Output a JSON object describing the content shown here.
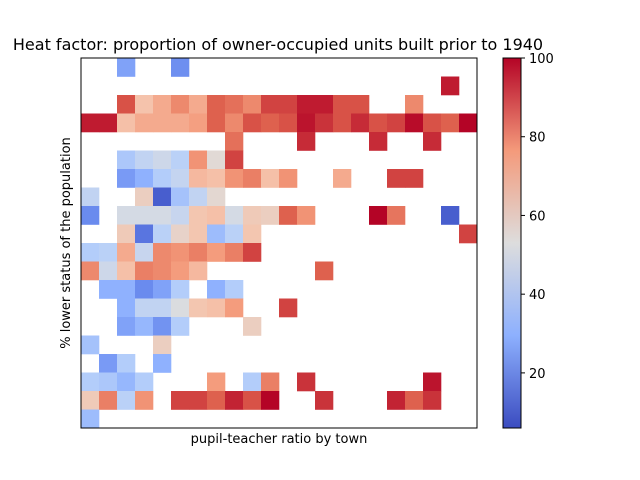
{
  "chart_data": {
    "type": "heatmap",
    "title": "Heat factor: proportion of owner-occupied units built prior to 1940",
    "xlabel": "pupil-teacher ratio by town",
    "ylabel": "% lower status of the population",
    "colormap": "coolwarm",
    "colorbar": {
      "min": 6,
      "max": 100,
      "ticks": [
        20,
        40,
        60,
        80,
        100
      ]
    },
    "grid": false,
    "rows_top_to_bottom": [
      [
        null,
        null,
        26,
        null,
        null,
        21,
        null,
        null,
        null,
        null,
        null,
        null,
        null,
        null,
        null,
        null,
        null,
        null,
        null,
        null,
        null,
        null,
        null,
        null,
        null,
        null,
        null,
        null,
        null,
        null,
        null,
        null,
        null,
        null,
        null,
        null,
        null,
        null,
        null,
        null,
        null,
        null,
        null,
        null,
        null,
        null,
        null,
        null,
        null,
        null,
        null,
        null,
        null,
        null,
        null,
        null,
        null,
        null,
        null,
        null,
        null,
        null,
        null,
        null,
        null,
        null,
        null,
        null,
        null,
        null,
        null,
        null,
        null,
        null
      ],
      [
        null,
        null,
        null,
        null,
        null,
        null,
        null,
        null,
        null,
        null,
        null,
        null,
        null,
        null,
        null,
        null,
        null,
        null,
        null,
        null,
        null,
        null,
        null,
        null,
        null,
        null,
        null,
        null,
        null,
        null,
        null,
        null,
        null,
        null,
        null,
        null,
        null,
        null,
        null,
        null,
        null,
        null,
        null,
        null,
        null,
        null,
        null,
        null,
        null,
        null,
        null,
        null,
        null,
        null,
        null,
        null,
        null,
        null,
        null,
        null,
        null,
        null,
        null,
        null,
        null,
        null,
        null,
        null,
        null,
        null,
        null,
        null,
        null,
        null
      ],
      [
        null,
        null,
        90,
        65,
        72,
        80,
        72,
        88,
        85,
        80,
        92,
        92,
        97,
        97,
        90,
        90,
        null,
        null,
        80,
        null,
        null,
        null,
        null,
        null,
        98,
        null
      ],
      [
        97,
        97,
        66,
        72,
        72,
        72,
        75,
        88,
        80,
        90,
        88,
        90,
        98,
        94,
        90,
        95,
        90,
        92,
        99,
        90,
        88,
        92,
        94,
        100
      ],
      [
        null,
        null,
        null,
        null,
        null,
        null,
        null,
        null,
        85,
        null,
        null,
        null,
        95,
        null,
        null,
        null,
        null,
        null,
        null,
        null,
        null,
        null,
        null,
        null,
        null,
        null,
        null,
        null,
        null,
        null,
        null,
        null,
        null,
        null,
        null,
        null,
        null,
        null,
        null,
        null,
        null,
        null,
        null,
        null,
        null,
        null,
        null,
        null,
        null,
        null,
        null,
        null,
        null,
        null,
        null,
        null,
        null,
        null,
        null,
        null,
        null,
        null,
        null,
        null,
        null,
        null,
        null,
        null,
        null,
        null,
        null,
        null,
        null,
        null
      ]
    ]
  }
}
